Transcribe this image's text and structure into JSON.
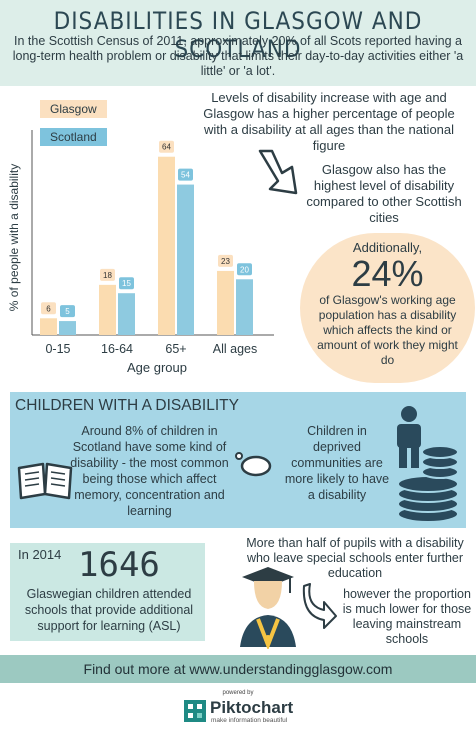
{
  "title": "DISABILITIES IN GLASGOW AND SCOTLAND",
  "intro": "In the Scottish Census of 2011, approximately 20% of all Scots reported having a long-term health problem or disability that limits their day-to-day activities either 'a little' or 'a lot'.",
  "colors": {
    "glasgow": "#fbdcb0",
    "scotland": "#8ecae0",
    "label_glasgow": "#fbe0c0",
    "label_scotland": "#7ec3dd",
    "blue_box": "#a6d6e6",
    "teal_box": "#cbe8e3",
    "footer": "#9cc9c1"
  },
  "chart_data": {
    "type": "bar",
    "categories": [
      "0-15",
      "16-64",
      "65+",
      "All ages"
    ],
    "series": [
      {
        "name": "Glasgow",
        "values": [
          6,
          18,
          64,
          23
        ]
      },
      {
        "name": "Scotland",
        "values": [
          5,
          15,
          54,
          20
        ]
      }
    ],
    "xlabel": "Age group",
    "ylabel": "% of people with a disability",
    "ylim": [
      0,
      70
    ],
    "legend": "top-left",
    "grid": false
  },
  "age_text": "Levels of disability increase with age and Glasgow has a higher percentage of people with a disability at all ages than the national figure",
  "cities_text": "Glasgow also has the highest level of disability compared to other Scottish cities",
  "working": {
    "prefix": "Additionally,",
    "value": "24%",
    "text": "of Glasgow's working age population has a disability which affects the kind or amount of work they might do"
  },
  "children": {
    "heading": "CHILDREN WITH A DISABILITY",
    "text1": "Around 8% of children in Scotland have some kind of disability - the most common being those which affect memory, concentration and learning",
    "text2": "Children in deprived communities are more likely to have a disability"
  },
  "asl": {
    "year": "In 2014",
    "count": "1646",
    "text": "Glaswegian children attended schools that provide additional support for learning (ASL)"
  },
  "further_ed": {
    "text1": "More than half of pupils with a disability who leave special schools enter further education",
    "text2": "however the proportion is much lower for those leaving mainstream schools"
  },
  "footer": "Find out more at www.understandingglasgow.com",
  "brand": {
    "powered": "powered by",
    "name": "Piktochart",
    "tagline": "make information beautiful"
  },
  "icons": [
    "arrow-down-right-icon",
    "book-icon",
    "thought-bubble-icon",
    "person-icon",
    "coin-stack-icon",
    "graduate-icon",
    "arrow-curve-icon",
    "piktochart-logo-icon"
  ]
}
